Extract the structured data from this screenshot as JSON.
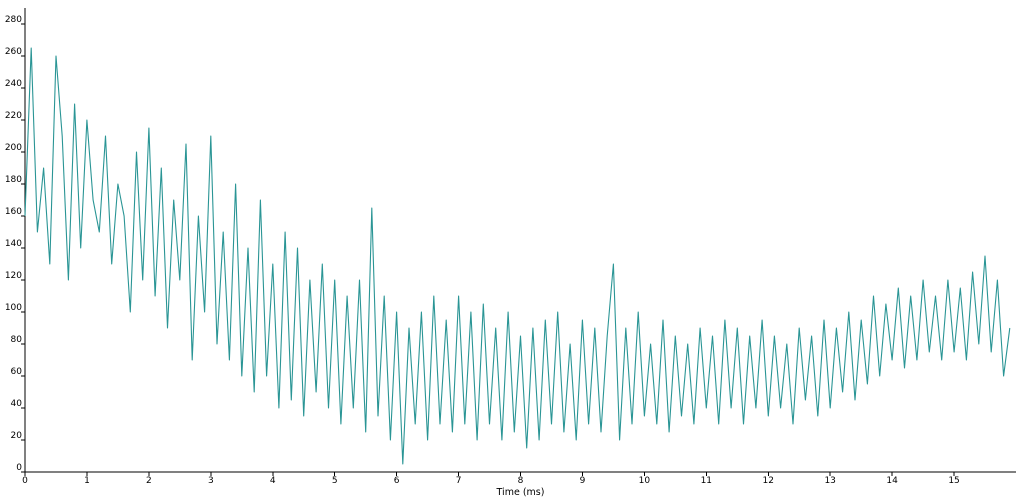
{
  "chart_data": {
    "type": "line",
    "title": "",
    "xlabel": "Time (ms)",
    "ylabel": "",
    "xlim": [
      0,
      16
    ],
    "ylim": [
      0,
      290
    ],
    "x_ticks": [
      0,
      1,
      2,
      3,
      4,
      5,
      6,
      7,
      8,
      9,
      10,
      11,
      12,
      13,
      14,
      15
    ],
    "y_ticks": [
      0,
      20,
      40,
      60,
      80,
      100,
      120,
      140,
      160,
      180,
      200,
      220,
      240,
      260,
      280
    ],
    "grid": false,
    "legend": "none",
    "series": [
      {
        "color": "#2a9595",
        "x": [
          0,
          0.1,
          0.2,
          0.3,
          0.4,
          0.5,
          0.6,
          0.7,
          0.8,
          0.9,
          1.0,
          1.1,
          1.2,
          1.3,
          1.4,
          1.5,
          1.6,
          1.7,
          1.8,
          1.9,
          2.0,
          2.1,
          2.2,
          2.3,
          2.4,
          2.5,
          2.6,
          2.7,
          2.8,
          2.9,
          3.0,
          3.1,
          3.2,
          3.3,
          3.4,
          3.5,
          3.6,
          3.7,
          3.8,
          3.9,
          4.0,
          4.1,
          4.2,
          4.3,
          4.4,
          4.5,
          4.6,
          4.7,
          4.8,
          4.9,
          5.0,
          5.1,
          5.2,
          5.3,
          5.4,
          5.5,
          5.6,
          5.7,
          5.8,
          5.9,
          6.0,
          6.1,
          6.2,
          6.3,
          6.4,
          6.5,
          6.6,
          6.7,
          6.8,
          6.9,
          7.0,
          7.1,
          7.2,
          7.3,
          7.4,
          7.5,
          7.6,
          7.7,
          7.8,
          7.9,
          8.0,
          8.1,
          8.2,
          8.3,
          8.4,
          8.5,
          8.6,
          8.7,
          8.8,
          8.9,
          9.0,
          9.1,
          9.2,
          9.3,
          9.4,
          9.5,
          9.6,
          9.7,
          9.8,
          9.9,
          10.0,
          10.1,
          10.2,
          10.3,
          10.4,
          10.5,
          10.6,
          10.7,
          10.8,
          10.9,
          11.0,
          11.1,
          11.2,
          11.3,
          11.4,
          11.5,
          11.6,
          11.7,
          11.8,
          11.9,
          12.0,
          12.1,
          12.2,
          12.3,
          12.4,
          12.5,
          12.6,
          12.7,
          12.8,
          12.9,
          13.0,
          13.1,
          13.2,
          13.3,
          13.4,
          13.5,
          13.6,
          13.7,
          13.8,
          13.9,
          14.0,
          14.1,
          14.2,
          14.3,
          14.4,
          14.5,
          14.6,
          14.7,
          14.8,
          14.9,
          15.0,
          15.1,
          15.2,
          15.3,
          15.4,
          15.5,
          15.6,
          15.7,
          15.8,
          15.9
        ],
        "values": [
          160,
          265,
          150,
          190,
          130,
          260,
          210,
          120,
          230,
          140,
          220,
          170,
          150,
          210,
          130,
          180,
          160,
          100,
          200,
          120,
          215,
          110,
          190,
          90,
          170,
          120,
          205,
          70,
          160,
          100,
          210,
          80,
          150,
          70,
          180,
          60,
          140,
          50,
          170,
          60,
          130,
          40,
          150,
          45,
          140,
          35,
          120,
          50,
          130,
          40,
          120,
          30,
          110,
          40,
          120,
          25,
          165,
          35,
          110,
          20,
          100,
          5,
          90,
          30,
          100,
          20,
          110,
          30,
          95,
          25,
          110,
          30,
          100,
          20,
          105,
          30,
          90,
          20,
          100,
          25,
          85,
          15,
          90,
          20,
          95,
          30,
          100,
          25,
          80,
          20,
          95,
          30,
          90,
          25,
          85,
          130,
          20,
          90,
          30,
          100,
          35,
          80,
          30,
          95,
          25,
          85,
          35,
          80,
          30,
          90,
          40,
          85,
          30,
          95,
          40,
          90,
          30,
          85,
          40,
          95,
          35,
          85,
          40,
          80,
          30,
          90,
          45,
          85,
          35,
          95,
          40,
          90,
          50,
          100,
          45,
          95,
          55,
          110,
          60,
          105,
          70,
          115,
          65,
          110,
          70,
          120,
          75,
          110,
          70,
          120,
          75,
          115,
          70,
          125,
          80,
          135,
          75,
          120,
          60,
          90
        ]
      }
    ]
  }
}
